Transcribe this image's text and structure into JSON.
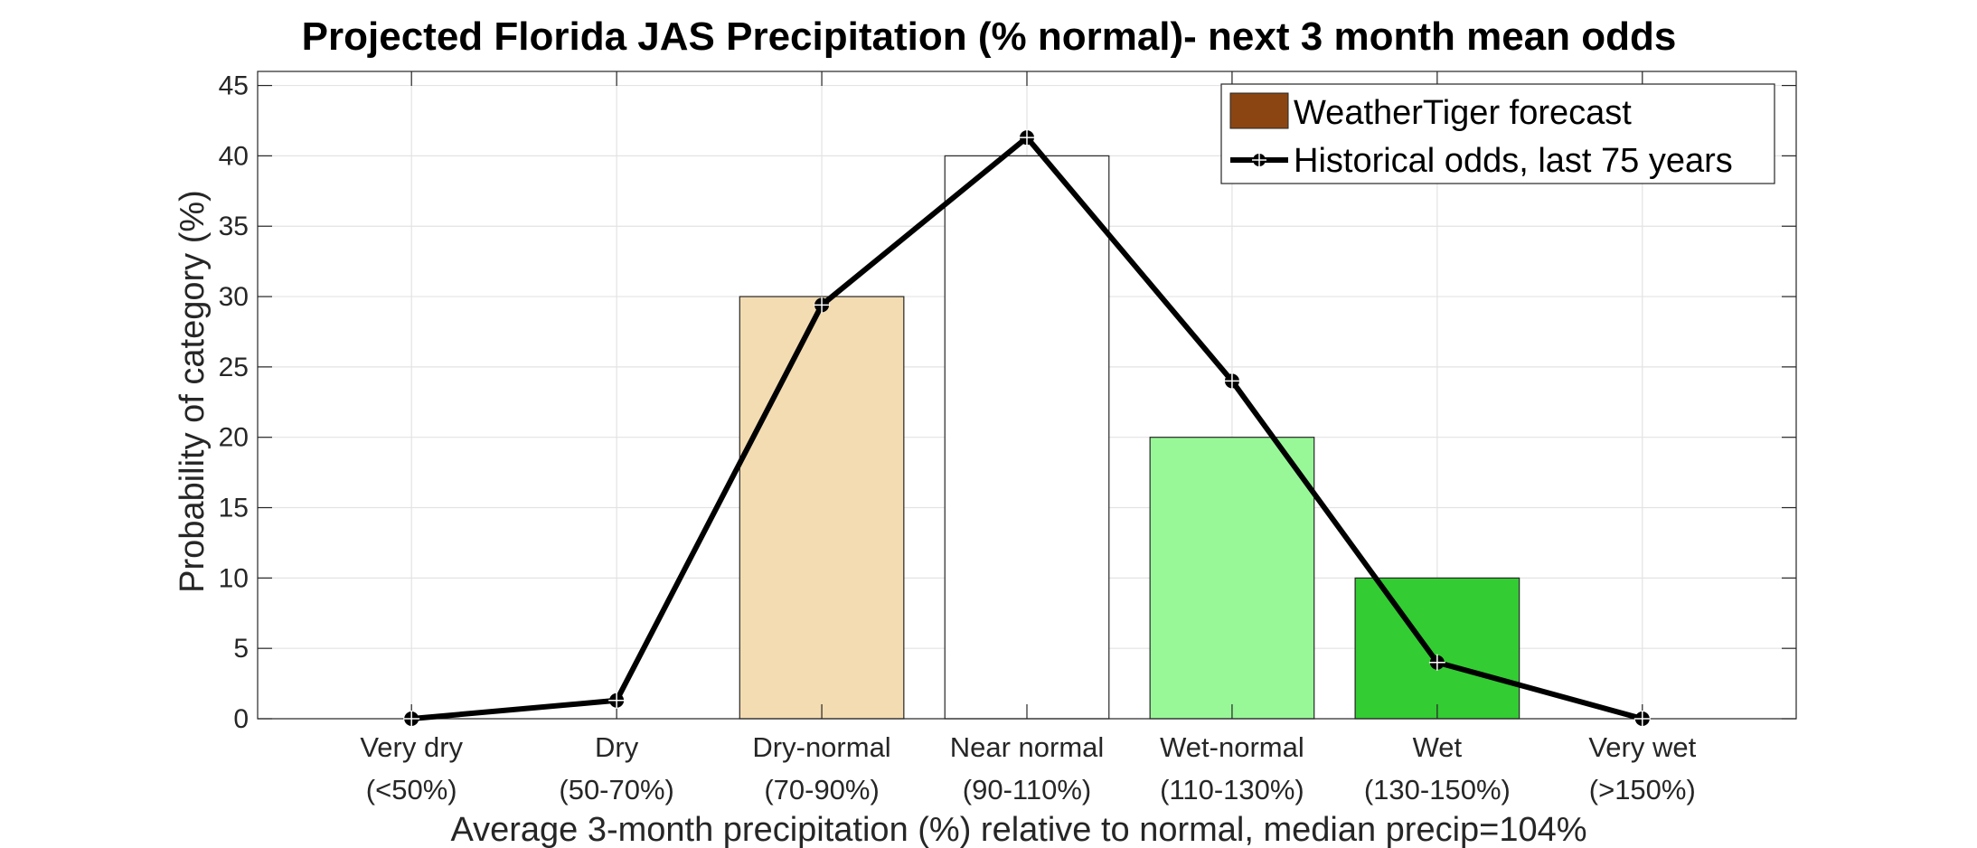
{
  "chart_data": {
    "type": "bar",
    "title": "Projected Florida JAS Precipitation (% normal)- next 3 month mean odds",
    "xlabel": "Average 3-month precipitation (%) relative to normal, median precip=104%",
    "ylabel": "Probability of category (%)",
    "ylim": [
      0,
      46
    ],
    "yticks": [
      "0",
      "5",
      "10",
      "15",
      "20",
      "25",
      "30",
      "35",
      "40",
      "45"
    ],
    "grid": true,
    "legend_position": "top-right",
    "categories": [
      {
        "name": "Very dry",
        "range": "(<50%)"
      },
      {
        "name": "Dry",
        "range": "(50-70%)"
      },
      {
        "name": "Dry-normal",
        "range": "(70-90%)"
      },
      {
        "name": "Near normal",
        "range": "(90-110%)"
      },
      {
        "name": "Wet-normal",
        "range": "(110-130%)"
      },
      {
        "name": "Wet",
        "range": "(130-150%)"
      },
      {
        "name": "Very wet",
        "range": "(>150%)"
      }
    ],
    "series": [
      {
        "name": "WeatherTiger forecast",
        "kind": "bar",
        "values": [
          0,
          0,
          30,
          40,
          20,
          10,
          0
        ],
        "colors": [
          "#ffffff",
          "#ffffff",
          "#f3dcb2",
          "#ffffff",
          "#98f898",
          "#33cc33",
          "#ffffff"
        ],
        "legend_color": "#8b4513"
      },
      {
        "name": "Historical odds, last 75 years",
        "kind": "line",
        "values": [
          0,
          1.3,
          29.4,
          41.3,
          24.0,
          4.0,
          0
        ],
        "color": "#000000"
      }
    ]
  }
}
